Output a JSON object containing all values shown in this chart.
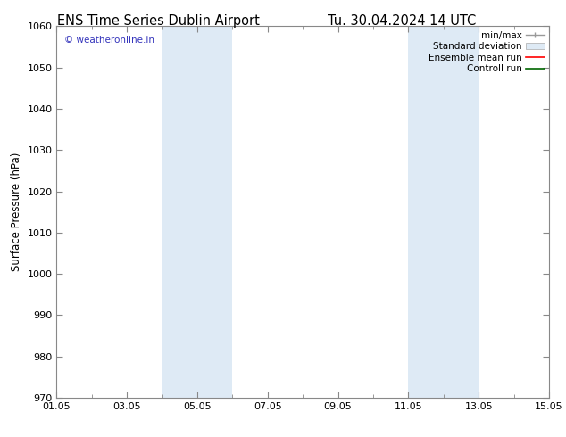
{
  "title_left": "ENS Time Series Dublin Airport",
  "title_right": "Tu. 30.04.2024 14 UTC",
  "ylabel": "Surface Pressure (hPa)",
  "xlabel": "",
  "ylim": [
    970,
    1060
  ],
  "yticks": [
    970,
    980,
    990,
    1000,
    1010,
    1020,
    1030,
    1040,
    1050,
    1060
  ],
  "xlim_start": 0,
  "xlim_end": 14,
  "xtick_labels": [
    "01.05",
    "03.05",
    "05.05",
    "07.05",
    "09.05",
    "11.05",
    "13.05",
    "15.05"
  ],
  "xtick_positions": [
    0,
    2,
    4,
    6,
    8,
    10,
    12,
    14
  ],
  "shaded_regions": [
    {
      "xstart": 3.0,
      "xend": 5.0,
      "color": "#deeaf5"
    },
    {
      "xstart": 10.0,
      "xend": 12.0,
      "color": "#deeaf5"
    }
  ],
  "watermark": "© weatheronline.in",
  "watermark_color": "#3333bb",
  "background_color": "#ffffff",
  "title_fontsize": 10.5,
  "axis_fontsize": 8.5,
  "tick_fontsize": 8,
  "legend_fontsize": 7.5
}
